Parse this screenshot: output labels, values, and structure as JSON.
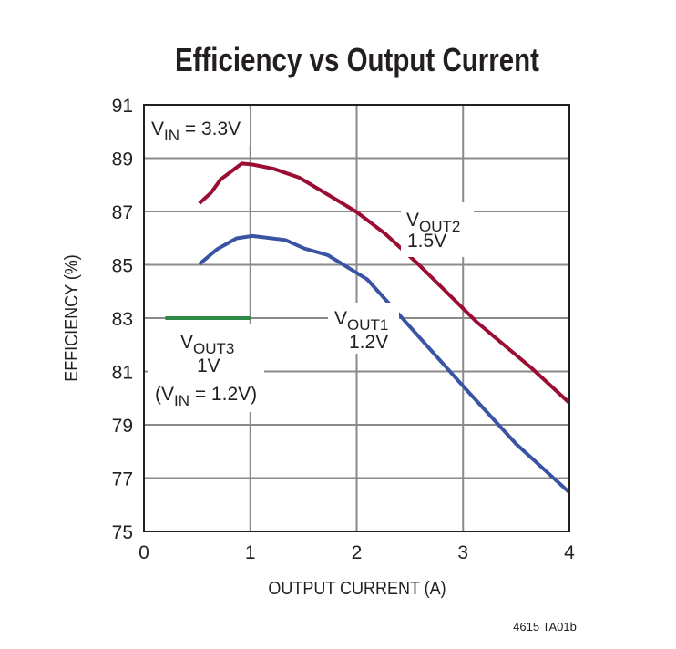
{
  "chart_data": {
    "type": "line",
    "title": "Efficiency vs Output Current",
    "xlabel": "OUTPUT CURRENT (A)",
    "ylabel": "EFFICIENCY (%)",
    "xlim": [
      0,
      4
    ],
    "ylim": [
      75,
      91
    ],
    "xticks": [
      "0",
      "1",
      "2",
      "3",
      "4"
    ],
    "yticks": [
      "75",
      "77",
      "79",
      "81",
      "83",
      "85",
      "87",
      "89",
      "91"
    ],
    "grid": true,
    "series": [
      {
        "name": "VOUT2 1.5V",
        "color": "#9b0d33",
        "x": [
          0.52,
          0.63,
          0.72,
          0.92,
          1.02,
          1.22,
          1.46,
          1.7,
          2.0,
          2.27,
          2.58,
          2.81,
          3.13,
          3.64,
          4.0
        ],
        "y": [
          87.3,
          87.7,
          88.2,
          88.8,
          88.76,
          88.6,
          88.27,
          87.7,
          86.98,
          86.16,
          85.02,
          84.11,
          82.85,
          81.14,
          79.82
        ]
      },
      {
        "name": "VOUT1 1.2V",
        "color": "#3a54a4",
        "x": [
          0.52,
          0.69,
          0.87,
          1.02,
          1.33,
          1.51,
          1.73,
          2.1,
          2.41,
          3.0,
          3.5,
          4.0
        ],
        "y": [
          85.02,
          85.59,
          85.99,
          86.08,
          85.93,
          85.61,
          85.36,
          84.45,
          83.08,
          80.45,
          78.28,
          76.46
        ]
      },
      {
        "name": "VOUT3 1V (VIN = 1.2V)",
        "color": "#2e8b47",
        "x": [
          0.2,
          1.0
        ],
        "y": [
          83,
          83
        ]
      }
    ],
    "annotations": {
      "vin": {
        "base": "V",
        "sub": "IN",
        "rest": " = 3.3V"
      },
      "vout2": {
        "base": "V",
        "sub": "OUT2",
        "line2": "1.5V"
      },
      "vout1": {
        "base": "V",
        "sub": "OUT1",
        "line2": "1.2V"
      },
      "vout3": {
        "base": "V",
        "sub": "OUT3",
        "line2": "1V",
        "line3_pre": "(V",
        "line3_sub": "IN",
        "line3_rest": " = 1.2V)"
      }
    }
  },
  "footer": "4615 TA01b"
}
